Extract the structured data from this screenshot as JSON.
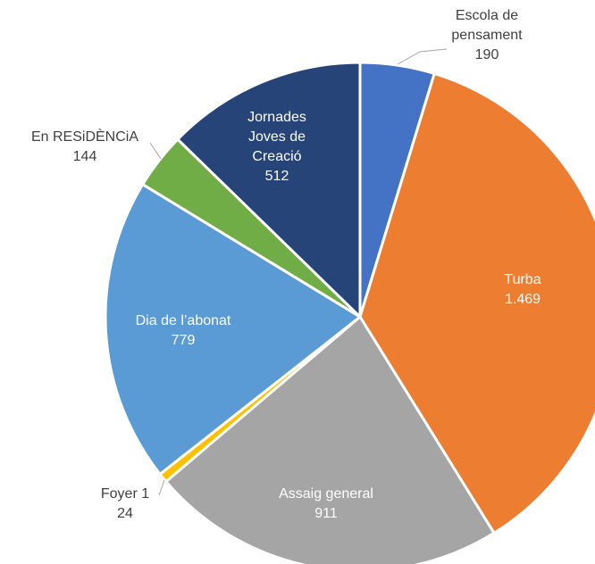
{
  "chart_data": {
    "type": "pie",
    "categories": [
      "Escola de pensament",
      "Turba",
      "Assaig general",
      "Foyer 1",
      "Dia de l’abonat",
      "En RESiDÈNCiA",
      "Jornades Joves de Creació"
    ],
    "values": [
      190,
      1469,
      911,
      24,
      779,
      144,
      512
    ],
    "value_labels": [
      "190",
      "1.469",
      "911",
      "24",
      "779",
      "144",
      "512"
    ],
    "colors": [
      "#4472c4",
      "#ed7d31",
      "#a5a5a5",
      "#ffc000",
      "#5b9bd5",
      "#70ad47",
      "#264478"
    ]
  }
}
